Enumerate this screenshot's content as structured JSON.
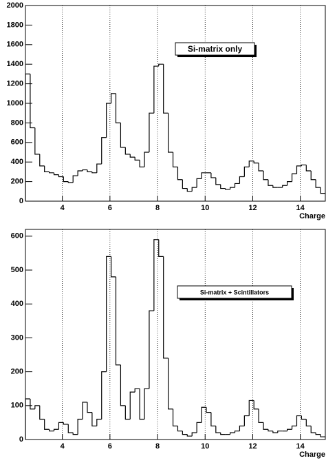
{
  "chart_data": [
    {
      "type": "histogram",
      "annotation": "Si-matrix only",
      "xlabel": "Charge",
      "color": "#000000",
      "grid": "x",
      "bins": [
        2.45,
        2.65,
        2.85,
        3.05,
        3.25,
        3.45,
        3.65,
        3.85,
        4.05,
        4.25,
        4.45,
        4.65,
        4.85,
        5.05,
        5.25,
        5.45,
        5.65,
        5.85,
        6.05,
        6.25,
        6.45,
        6.65,
        6.85,
        7.05,
        7.25,
        7.45,
        7.65,
        7.85,
        8.05,
        8.25,
        8.45,
        8.65,
        8.85,
        9.05,
        9.25,
        9.45,
        9.65,
        9.85,
        10.05,
        10.25,
        10.45,
        10.65,
        10.85,
        11.05,
        11.25,
        11.45,
        11.65,
        11.85,
        12.05,
        12.25,
        12.45,
        12.65,
        12.85,
        13.05,
        13.25,
        13.45,
        13.65,
        13.85,
        14.05,
        14.25,
        14.45,
        14.65,
        14.85,
        15.05
      ],
      "values": [
        1300,
        750,
        480,
        360,
        300,
        290,
        270,
        250,
        200,
        190,
        260,
        310,
        320,
        300,
        290,
        380,
        650,
        1000,
        1100,
        800,
        550,
        480,
        450,
        420,
        350,
        500,
        900,
        1380,
        1400,
        900,
        500,
        350,
        220,
        130,
        100,
        140,
        230,
        290,
        290,
        240,
        170,
        130,
        120,
        140,
        180,
        250,
        350,
        410,
        390,
        310,
        220,
        160,
        140,
        140,
        160,
        200,
        280,
        360,
        370,
        310,
        220,
        140,
        80
      ],
      "xlim": [
        2.45,
        15.05
      ],
      "ylim": [
        0,
        2000
      ],
      "xticks": [
        4,
        6,
        8,
        10,
        12,
        14
      ],
      "yticks": [
        0,
        200,
        400,
        600,
        800,
        1000,
        1200,
        1400,
        1600,
        1800,
        2000
      ]
    },
    {
      "type": "histogram",
      "annotation": "Si-matrix + Scintillators",
      "xlabel": "Charge",
      "color": "#000000",
      "grid": "x",
      "bins": [
        2.45,
        2.65,
        2.85,
        3.05,
        3.25,
        3.45,
        3.65,
        3.85,
        4.05,
        4.25,
        4.45,
        4.65,
        4.85,
        5.05,
        5.25,
        5.45,
        5.65,
        5.85,
        6.05,
        6.25,
        6.45,
        6.65,
        6.85,
        7.05,
        7.25,
        7.45,
        7.65,
        7.85,
        8.05,
        8.25,
        8.45,
        8.65,
        8.85,
        9.05,
        9.25,
        9.45,
        9.65,
        9.85,
        10.05,
        10.25,
        10.45,
        10.65,
        10.85,
        11.05,
        11.25,
        11.45,
        11.65,
        11.85,
        12.05,
        12.25,
        12.45,
        12.65,
        12.85,
        13.05,
        13.25,
        13.45,
        13.65,
        13.85,
        14.05,
        14.25,
        14.45,
        14.65,
        14.85,
        15.05
      ],
      "values": [
        120,
        90,
        100,
        60,
        30,
        25,
        30,
        50,
        45,
        20,
        15,
        60,
        110,
        80,
        40,
        60,
        200,
        540,
        480,
        220,
        100,
        60,
        140,
        150,
        60,
        150,
        380,
        590,
        540,
        240,
        90,
        40,
        25,
        15,
        10,
        20,
        50,
        95,
        80,
        40,
        20,
        15,
        15,
        20,
        25,
        40,
        70,
        115,
        90,
        50,
        30,
        25,
        20,
        25,
        25,
        30,
        40,
        70,
        60,
        40,
        20,
        15,
        8
      ],
      "xlim": [
        2.45,
        15.05
      ],
      "ylim": [
        0,
        620
      ],
      "xticks": [
        4,
        6,
        8,
        10,
        12,
        14
      ],
      "yticks": [
        0,
        100,
        200,
        300,
        400,
        500,
        600
      ]
    }
  ]
}
